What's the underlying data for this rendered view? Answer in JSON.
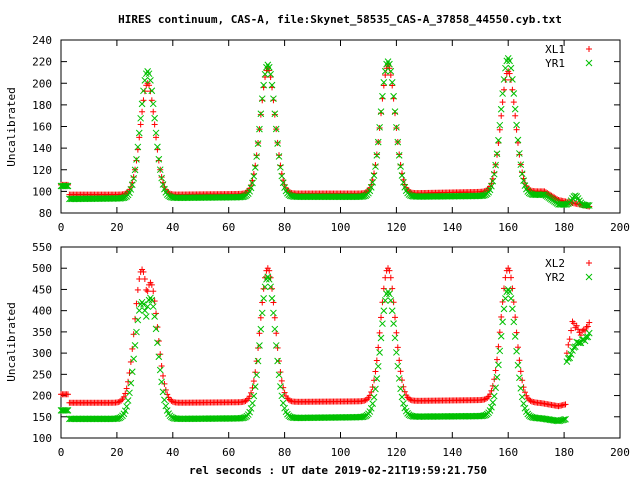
{
  "figure": {
    "title": "HIRES continuum, CAS-A, file:Skynet_58535_CAS-A_37858_44550.cyb.txt",
    "xlabel": "rel seconds : UT date 2019-02-21T19:59:21.750"
  },
  "colors": {
    "red": "#ff0000",
    "green": "#00c000"
  },
  "chart_data": [
    {
      "type": "scatter",
      "ylabel": "Uncalibrated",
      "xlim": [
        0,
        200
      ],
      "ylim": [
        80,
        240
      ],
      "xticks": [
        0,
        20,
        40,
        60,
        80,
        100,
        120,
        140,
        160,
        180,
        200
      ],
      "yticks": [
        80,
        100,
        120,
        140,
        160,
        180,
        200,
        220,
        240
      ],
      "legend_position": "top-right",
      "peaks_x": [
        31,
        74,
        117,
        160
      ],
      "series": [
        {
          "name": "XL1",
          "marker": "+",
          "color": "#ff0000",
          "model": {
            "x_range": [
              0,
              189
            ],
            "step": 0.5,
            "start": {
              "until": 3,
              "level": 106
            },
            "baseline": [
              [
                3,
                97
              ],
              [
                40,
                97
              ],
              [
                80,
                98
              ],
              [
                120,
                98
              ],
              [
                160,
                100
              ],
              [
                173,
                100
              ],
              [
                178,
                92
              ],
              [
                189,
                86
              ]
            ],
            "peaks": [
              {
                "x": 31,
                "y": 200
              },
              {
                "x": 74,
                "y": 214
              },
              {
                "x": 117,
                "y": 216
              },
              {
                "x": 160,
                "y": 211
              }
            ],
            "sigma": 2.6
          }
        },
        {
          "name": "YR1",
          "marker": "x",
          "color": "#00c000",
          "model": {
            "x_range": [
              0,
              189
            ],
            "step": 0.5,
            "start": {
              "until": 3,
              "level": 105
            },
            "baseline": [
              [
                3,
                93
              ],
              [
                40,
                94
              ],
              [
                80,
                95
              ],
              [
                120,
                95
              ],
              [
                160,
                96
              ],
              [
                173,
                97
              ],
              [
                178,
                88
              ],
              [
                189,
                87
              ]
            ],
            "peaks": [
              {
                "x": 31,
                "y": 211
              },
              {
                "x": 74,
                "y": 217
              },
              {
                "x": 117,
                "y": 220
              },
              {
                "x": 160,
                "y": 223
              }
            ],
            "sigma": 2.6,
            "bumps": [
              {
                "x": 184,
                "y": 96,
                "width": 1.2
              }
            ]
          }
        }
      ]
    },
    {
      "type": "scatter",
      "ylabel": "Uncalibrated",
      "xlim": [
        0,
        200
      ],
      "ylim": [
        100,
        550
      ],
      "xticks": [
        0,
        20,
        40,
        60,
        80,
        100,
        120,
        140,
        160,
        180,
        200
      ],
      "yticks": [
        100,
        150,
        200,
        250,
        300,
        350,
        400,
        450,
        500,
        550
      ],
      "legend_position": "top-right",
      "series": [
        {
          "name": "XL2",
          "marker": "+",
          "color": "#ff0000",
          "model": {
            "x_range": [
              0,
              189
            ],
            "step": 0.5,
            "start": {
              "until": 3,
              "level": 203
            },
            "baseline": [
              [
                3,
                183
              ],
              [
                40,
                183
              ],
              [
                80,
                185
              ],
              [
                120,
                187
              ],
              [
                160,
                190
              ],
              [
                172,
                182
              ],
              [
                178,
                175
              ],
              [
                181,
                180
              ]
            ],
            "peaks": [
              {
                "x": 29,
                "y": 497
              },
              {
                "x": 32,
                "y": 466
              },
              {
                "x": 74,
                "y": 500
              },
              {
                "x": 117,
                "y": 500
              },
              {
                "x": 160,
                "y": 500
              }
            ],
            "sigma": 2.6,
            "tail": [
              [
                181,
                300
              ],
              [
                183,
                375
              ],
              [
                186,
                345
              ],
              [
                189,
                370
              ]
            ]
          }
        },
        {
          "name": "YR2",
          "marker": "x",
          "color": "#00c000",
          "model": {
            "x_range": [
              0,
              189
            ],
            "step": 0.5,
            "start": {
              "until": 3,
              "level": 165
            },
            "baseline": [
              [
                3,
                145
              ],
              [
                40,
                145
              ],
              [
                80,
                147
              ],
              [
                120,
                150
              ],
              [
                160,
                152
              ],
              [
                172,
                146
              ],
              [
                178,
                140
              ],
              [
                181,
                145
              ]
            ],
            "peaks": [
              {
                "x": 29,
                "y": 420
              },
              {
                "x": 32,
                "y": 430
              },
              {
                "x": 74,
                "y": 480
              },
              {
                "x": 117,
                "y": 445
              },
              {
                "x": 160,
                "y": 450
              }
            ],
            "sigma": 2.6,
            "tail": [
              [
                181,
                280
              ],
              [
                184,
                320
              ],
              [
                187,
                330
              ],
              [
                189,
                345
              ]
            ]
          }
        }
      ]
    }
  ]
}
